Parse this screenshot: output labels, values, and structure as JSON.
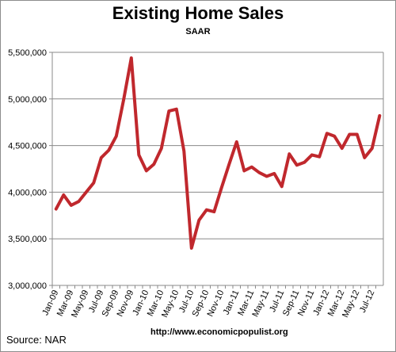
{
  "chart_data": {
    "type": "line",
    "title": "Existing Home Sales",
    "subtitle": "SAAR",
    "xlabel": "",
    "ylabel": "",
    "ylim": [
      3000000,
      5500000
    ],
    "yticks": [
      3000000,
      3500000,
      4000000,
      4500000,
      5000000,
      5500000
    ],
    "ytick_labels": [
      "3,000,000",
      "3,500,000",
      "4,000,000",
      "4,500,000",
      "5,000,000",
      "5,500,000"
    ],
    "grid": true,
    "legend": "none",
    "line_color": "#c0282d",
    "x": [
      "Jan-09",
      "Feb-09",
      "Mar-09",
      "Apr-09",
      "May-09",
      "Jun-09",
      "Jul-09",
      "Aug-09",
      "Sep-09",
      "Oct-09",
      "Nov-09",
      "Dec-09",
      "Jan-10",
      "Feb-10",
      "Mar-10",
      "Apr-10",
      "May-10",
      "Jun-10",
      "Jul-10",
      "Aug-10",
      "Sep-10",
      "Oct-10",
      "Nov-10",
      "Dec-10",
      "Jan-11",
      "Feb-11",
      "Mar-11",
      "Apr-11",
      "May-11",
      "Jun-11",
      "Jul-11",
      "Aug-11",
      "Sep-11",
      "Oct-11",
      "Nov-11",
      "Dec-11",
      "Jan-12",
      "Feb-12",
      "Mar-12",
      "Apr-12",
      "May-12",
      "Jun-12",
      "Jul-12",
      "Aug-12"
    ],
    "x_tick_labels": [
      "Jan-09",
      "Mar-09",
      "May-09",
      "Jul-09",
      "Sep-09",
      "Nov-09",
      "Jan-10",
      "Mar-10",
      "May-10",
      "Jul-10",
      "Sep-10",
      "Nov-10",
      "Jan-11",
      "Mar-11",
      "May-11",
      "Jul-11",
      "Sep-11",
      "Nov-11",
      "Jan-12",
      "Mar-12",
      "May-12",
      "Jul-12"
    ],
    "values": [
      3820000,
      3970000,
      3860000,
      3900000,
      4000000,
      4100000,
      4370000,
      4450000,
      4600000,
      5000000,
      5440000,
      4400000,
      4230000,
      4300000,
      4470000,
      4870000,
      4890000,
      4440000,
      3400000,
      3700000,
      3810000,
      3790000,
      4050000,
      4300000,
      4540000,
      4230000,
      4270000,
      4210000,
      4170000,
      4200000,
      4060000,
      4410000,
      4290000,
      4320000,
      4400000,
      4380000,
      4630000,
      4600000,
      4470000,
      4620000,
      4620000,
      4370000,
      4470000,
      4820000
    ]
  },
  "footer": {
    "source": "Source:  NAR",
    "url": "http://www.economicpopulist.org"
  }
}
